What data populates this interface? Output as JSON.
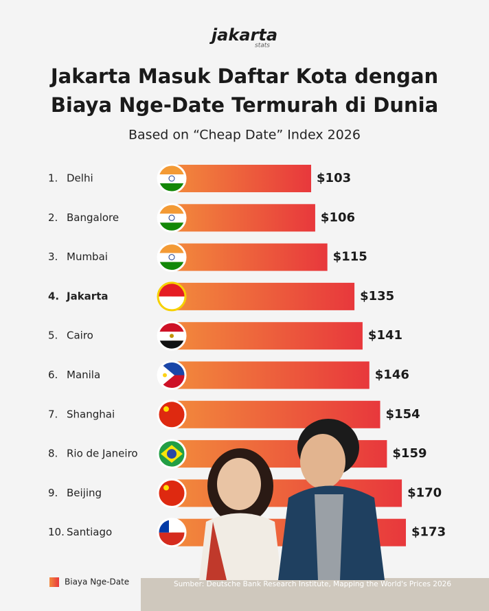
{
  "logo": {
    "name": "jakarta",
    "sub": "stats"
  },
  "chart_data": {
    "type": "bar",
    "orientation": "horizontal",
    "title": [
      "Jakarta Masuk Daftar Kota dengan",
      "Biaya Nge-Date Termurah di Dunia"
    ],
    "subtitle": "Based on “Cheap Date” Index 2026",
    "ranks": [
      "1.",
      "2.",
      "3.",
      "4.",
      "5.",
      "6.",
      "7.",
      "8.",
      "9.",
      "10."
    ],
    "categories": [
      "Delhi",
      "Bangalore",
      "Mumbai",
      "Jakarta",
      "Cairo",
      "Manila",
      "Shanghai",
      "Rio de Janeiro",
      "Beijing",
      "Santiago"
    ],
    "series": [
      {
        "name": "Biaya Nge-Date",
        "color": "#e8383c",
        "values": [
          103,
          106,
          115,
          135,
          141,
          146,
          154,
          159,
          170,
          173
        ],
        "value_labels": [
          "$103",
          "$106",
          "$115",
          "$135",
          "$141",
          "$146",
          "$154",
          "$159",
          "$170",
          "$173"
        ]
      }
    ],
    "legend": "bottom-left",
    "source": "Sumber: Deutsche Bank Research Institute, Mapping the World's Prices 2026"
  }
}
